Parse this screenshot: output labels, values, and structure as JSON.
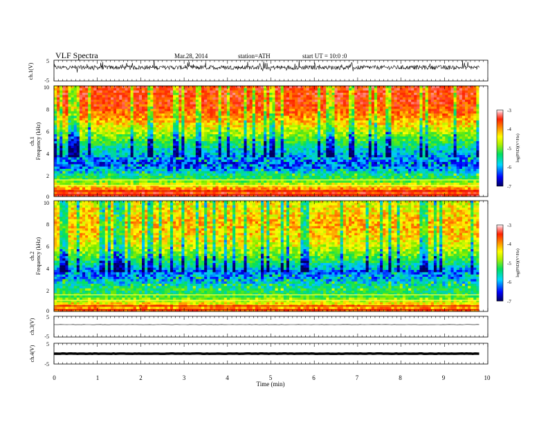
{
  "header": {
    "title": "VLF  Spectra",
    "date": "Mar.28, 2014",
    "station": "station=ATH",
    "start_ut": "start  UT =   10:0  :0"
  },
  "panels": {
    "ch1_waveform": {
      "ylabel": "ch.1(V)",
      "yticks": [
        "5",
        "-5"
      ]
    },
    "ch1_spectrogram": {
      "ylabel_top": "ch.1",
      "ylabel": "Frequency  (kHz)",
      "yticks": [
        "10",
        "8",
        "6",
        "4",
        "2",
        "0"
      ]
    },
    "ch2_spectrogram": {
      "ylabel_top": "ch.2",
      "ylabel": "Frequency  (kHz)",
      "yticks": [
        "10",
        "8",
        "6",
        "4",
        "2",
        "0"
      ]
    },
    "ch3_waveform": {
      "ylabel": "ch.3(V)",
      "yticks": [
        "5",
        "-5"
      ]
    },
    "ch4_waveform": {
      "ylabel": "ch.4(V)",
      "yticks": [
        "5",
        "-5"
      ]
    }
  },
  "xaxis": {
    "label": "Time  (min)",
    "ticks": [
      "0",
      "1",
      "2",
      "3",
      "4",
      "5",
      "6",
      "7",
      "8",
      "9",
      "10"
    ]
  },
  "colorbars": [
    {
      "label": "log(PSD)(V²/Hz)",
      "ticks": [
        "-3",
        "-4",
        "-5",
        "-6",
        "-7"
      ]
    },
    {
      "label": "log(PSD)(V²/Hz)",
      "ticks": [
        "-3",
        "-4",
        "-5",
        "-6",
        "-7"
      ]
    }
  ],
  "colors": {
    "low": "#0000a0",
    "blue": "#0040ff",
    "cyan": "#00e0e0",
    "green": "#40e040",
    "yellow": "#f0f000",
    "orange": "#ff8000",
    "red": "#ff2000",
    "high": "#ffffff"
  },
  "chart_data": [
    {
      "type": "line",
      "name": "ch.1 waveform",
      "x_range": [
        0,
        9.8
      ],
      "xlim": [
        0,
        10
      ],
      "ylim": [
        -5,
        5
      ],
      "baseline_v": 1.5,
      "envelope_v": [
        -1.0,
        3.5
      ],
      "xlabel": "Time  (min)",
      "ylabel": "ch.1(V)"
    },
    {
      "type": "heatmap",
      "name": "ch.1 spectrogram",
      "xlim": [
        0,
        10
      ],
      "data_end_min": 9.8,
      "ylim_khz": [
        0,
        10
      ],
      "color_scale_log_psd": [
        -7,
        -3
      ],
      "band_profile": {
        "freq_khz": [
          0,
          0.5,
          1,
          1.5,
          2,
          2.5,
          3,
          3.5,
          4,
          5,
          6,
          7,
          8,
          9,
          10
        ],
        "log_psd": [
          -3.5,
          -3.7,
          -4.5,
          -5.3,
          -5.6,
          -6.2,
          -6.4,
          -6.1,
          -5.9,
          -5.3,
          -4.7,
          -4.1,
          -3.7,
          -3.6,
          -3.6
        ]
      },
      "ylabel": "Frequency  (kHz)"
    },
    {
      "type": "heatmap",
      "name": "ch.2 spectrogram",
      "xlim": [
        0,
        10
      ],
      "data_end_min": 9.8,
      "ylim_khz": [
        0,
        10
      ],
      "color_scale_log_psd": [
        -7,
        -3
      ],
      "band_profile": {
        "freq_khz": [
          0,
          0.5,
          1,
          1.5,
          2,
          2.5,
          3,
          3.5,
          4,
          5,
          6,
          7,
          8,
          9,
          10
        ],
        "log_psd": [
          -3.8,
          -4.2,
          -4.8,
          -5.4,
          -5.5,
          -5.8,
          -6.1,
          -6.3,
          -5.8,
          -5.1,
          -4.6,
          -4.3,
          -4.2,
          -4.4,
          -4.6
        ]
      },
      "ylabel": "Frequency  (kHz)"
    },
    {
      "type": "line",
      "name": "ch.3 waveform",
      "x_range": [
        0,
        9.8
      ],
      "xlim": [
        0,
        10
      ],
      "ylim": [
        -5,
        5
      ],
      "baseline_v": 1.0,
      "ylabel": "ch.3(V)"
    },
    {
      "type": "line",
      "name": "ch.4 waveform",
      "x_range": [
        0,
        9.8
      ],
      "xlim": [
        0,
        10
      ],
      "ylim": [
        -5,
        5
      ],
      "baseline_v": 0.0,
      "ylabel": "ch.4(V)"
    }
  ]
}
